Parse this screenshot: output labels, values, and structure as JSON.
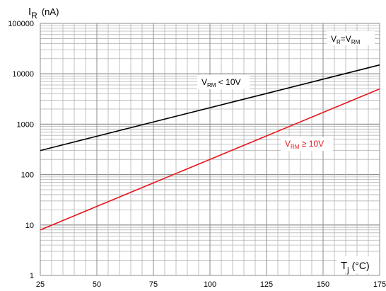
{
  "chart_data": {
    "type": "line",
    "x_scale": "linear",
    "y_scale": "log",
    "xlim": [
      25,
      175
    ],
    "ylim": [
      1,
      100000
    ],
    "x_ticks": [
      25,
      50,
      75,
      100,
      125,
      150,
      175
    ],
    "y_ticks": [
      1,
      10,
      100,
      1000,
      10000,
      100000
    ],
    "x_tick_labels": [
      "25",
      "50",
      "75",
      "100",
      "125",
      "150",
      "175"
    ],
    "y_tick_labels": [
      "1",
      "10",
      "100",
      "1000",
      "10000",
      "100000"
    ],
    "grid": true,
    "ylabel": {
      "main": "I",
      "sub": "R",
      "unit": "(nA)"
    },
    "xlabel": {
      "main": "T",
      "sub": "j",
      "unit": "(°C)"
    },
    "legend_box": {
      "main": "V",
      "sub1": "R",
      "mid": "=V",
      "sub2": "RM"
    },
    "series": [
      {
        "name": "V_RM < 10V",
        "label": {
          "main": "V",
          "sub": "RM",
          "rest": " < 10V"
        },
        "color": "#000000",
        "x": [
          25,
          175
        ],
        "y": [
          300,
          15000
        ]
      },
      {
        "name": "V_RM ≥ 10V",
        "label": {
          "main": "V",
          "sub": "RM",
          "rest": " ≥ 10V"
        },
        "color": "#e8141b",
        "x": [
          25,
          175
        ],
        "y": [
          8,
          5000
        ]
      }
    ]
  }
}
